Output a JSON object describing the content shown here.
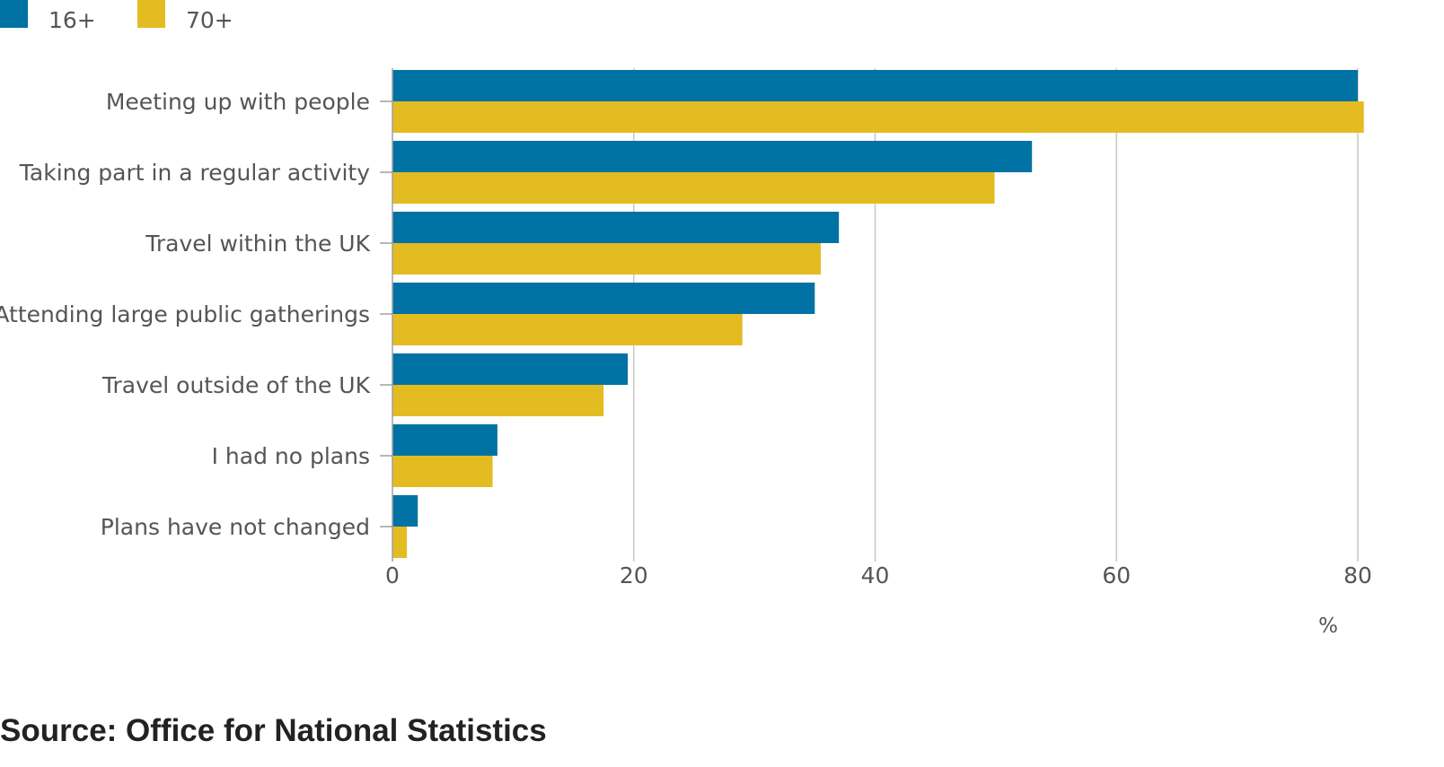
{
  "chart_data": {
    "type": "bar",
    "orientation": "horizontal",
    "categories": [
      "Meeting up with people",
      "Taking part in a regular activity",
      "Travel within the UK",
      "Attending large public gatherings",
      "Travel outside of the UK",
      "I had no plans",
      "Plans have not changed"
    ],
    "series": [
      {
        "name": "16+",
        "color": "#0072a3",
        "values": [
          80,
          53,
          37,
          35,
          19.5,
          8.7,
          2.1
        ]
      },
      {
        "name": "70+",
        "color": "#e3bc21",
        "values": [
          80.5,
          49.9,
          35.5,
          29,
          17.5,
          8.3,
          1.2
        ]
      }
    ],
    "xlim": [
      0,
      80
    ],
    "xticks": [
      0,
      20,
      40,
      60,
      80
    ],
    "xlabel": "%",
    "grid": true,
    "legend": "top-left"
  },
  "source": "Source: Office for National Statistics"
}
